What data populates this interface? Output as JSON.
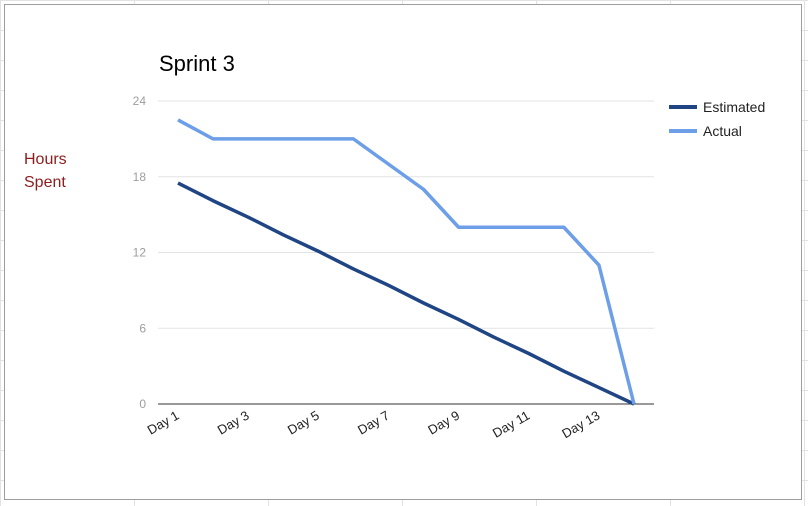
{
  "chart_data": {
    "type": "line",
    "title": "Sprint 3",
    "ylabel": "Hours Spent",
    "xlabel": "",
    "x": [
      1,
      2,
      3,
      4,
      5,
      6,
      7,
      8,
      9,
      10,
      11,
      12,
      13,
      14
    ],
    "x_tick_labels": [
      "Day 1",
      "Day 3",
      "Day 5",
      "Day 7",
      "Day 9",
      "Day 11",
      "Day 13"
    ],
    "x_tick_values": [
      1,
      3,
      5,
      7,
      9,
      11,
      13
    ],
    "ylim": [
      0,
      24
    ],
    "y_ticks": [
      0,
      6,
      12,
      18,
      24
    ],
    "grid": true,
    "legend_position": "right",
    "series": [
      {
        "name": "Estimated",
        "color": "#1f4585",
        "values": [
          17.5,
          16.1,
          14.8,
          13.4,
          12.1,
          10.7,
          9.4,
          8.0,
          6.7,
          5.3,
          4.0,
          2.6,
          1.3,
          0
        ]
      },
      {
        "name": "Actual",
        "color": "#6d9ee8",
        "values": [
          22.5,
          21,
          21,
          21,
          21,
          21,
          19,
          17,
          14,
          14,
          14,
          14,
          11,
          0
        ]
      }
    ]
  }
}
